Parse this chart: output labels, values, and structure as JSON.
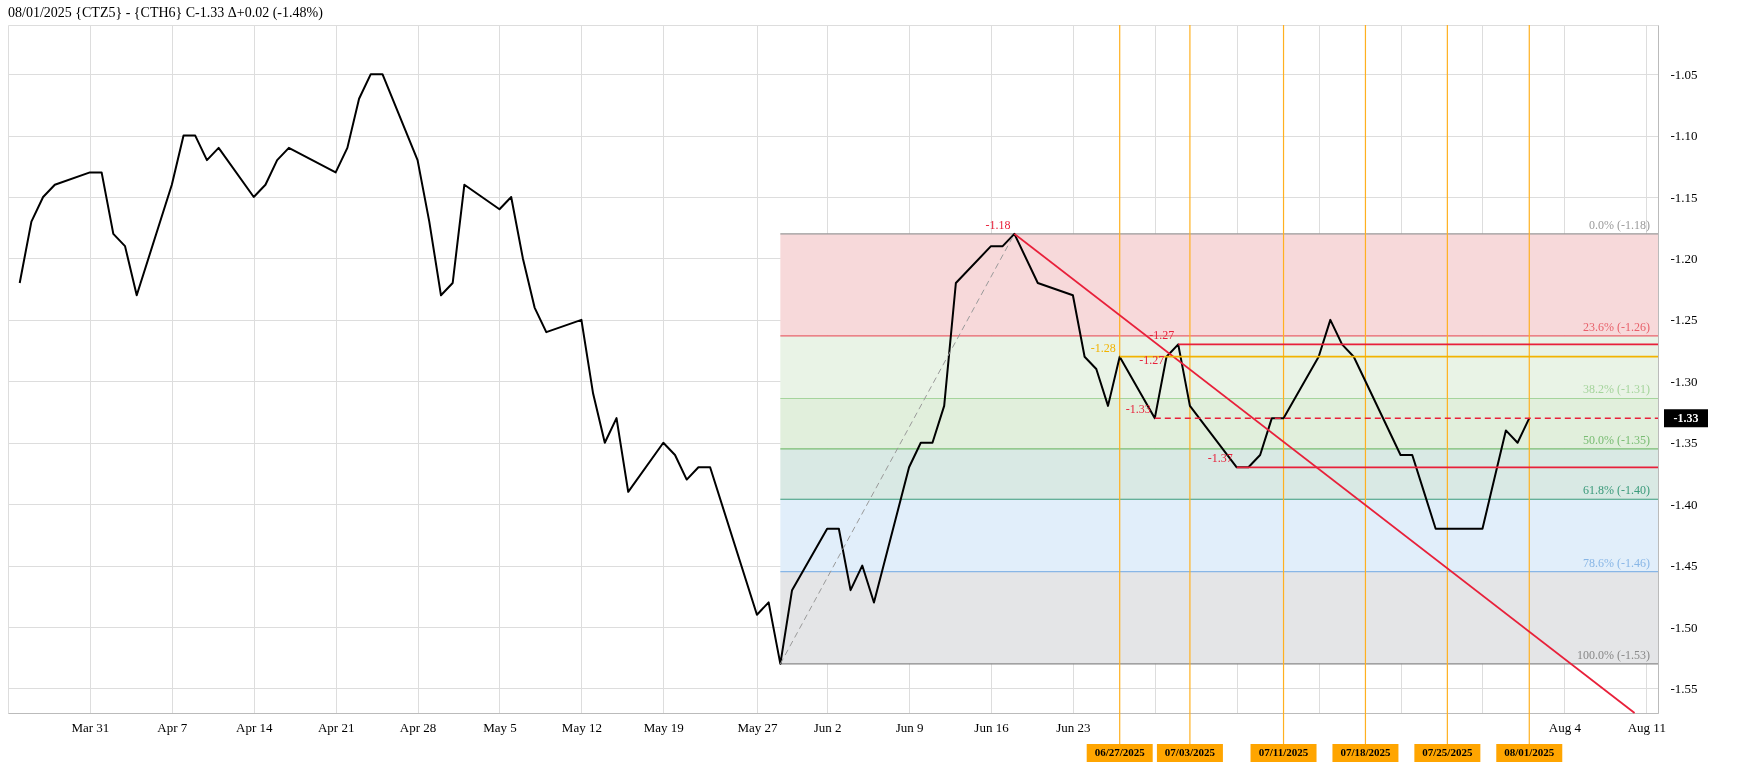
{
  "chart_data": {
    "type": "line",
    "title": "08/01/2025 {CTZ5} - {CTH6} C-1.33 Δ+0.02 (-1.48%)",
    "x": [
      "2025-03-25",
      "2025-03-26",
      "2025-03-27",
      "2025-03-28",
      "2025-03-31",
      "2025-04-01",
      "2025-04-02",
      "2025-04-03",
      "2025-04-04",
      "2025-04-07",
      "2025-04-08",
      "2025-04-09",
      "2025-04-10",
      "2025-04-11",
      "2025-04-14",
      "2025-04-15",
      "2025-04-16",
      "2025-04-17",
      "2025-04-21",
      "2025-04-22",
      "2025-04-23",
      "2025-04-24",
      "2025-04-25",
      "2025-04-28",
      "2025-04-29",
      "2025-04-30",
      "2025-05-01",
      "2025-05-02",
      "2025-05-05",
      "2025-05-06",
      "2025-05-07",
      "2025-05-08",
      "2025-05-09",
      "2025-05-12",
      "2025-05-13",
      "2025-05-14",
      "2025-05-15",
      "2025-05-16",
      "2025-05-19",
      "2025-05-20",
      "2025-05-21",
      "2025-05-22",
      "2025-05-23",
      "2025-05-27",
      "2025-05-28",
      "2025-05-29",
      "2025-05-30",
      "2025-06-02",
      "2025-06-03",
      "2025-06-04",
      "2025-06-05",
      "2025-06-06",
      "2025-06-09",
      "2025-06-10",
      "2025-06-11",
      "2025-06-12",
      "2025-06-13",
      "2025-06-16",
      "2025-06-17",
      "2025-06-18",
      "2025-06-20",
      "2025-06-23",
      "2025-06-24",
      "2025-06-25",
      "2025-06-26",
      "2025-06-27",
      "2025-06-30",
      "2025-07-01",
      "2025-07-02",
      "2025-07-03",
      "2025-07-07",
      "2025-07-08",
      "2025-07-09",
      "2025-07-10",
      "2025-07-11",
      "2025-07-14",
      "2025-07-15",
      "2025-07-16",
      "2025-07-17",
      "2025-07-18",
      "2025-07-21",
      "2025-07-22",
      "2025-07-23",
      "2025-07-24",
      "2025-07-25",
      "2025-07-28",
      "2025-07-29",
      "2025-07-30",
      "2025-07-31",
      "2025-08-01"
    ],
    "series": [
      {
        "color": "#000000",
        "values": [
          -1.22,
          -1.17,
          -1.15,
          -1.14,
          -1.13,
          -1.13,
          -1.18,
          -1.19,
          -1.23,
          -1.14,
          -1.1,
          -1.1,
          -1.12,
          -1.11,
          -1.15,
          -1.14,
          -1.12,
          -1.11,
          -1.13,
          -1.11,
          -1.07,
          -1.05,
          -1.05,
          -1.12,
          -1.17,
          -1.23,
          -1.22,
          -1.14,
          -1.16,
          -1.15,
          -1.2,
          -1.24,
          -1.26,
          -1.25,
          -1.31,
          -1.35,
          -1.33,
          -1.39,
          -1.35,
          -1.36,
          -1.38,
          -1.37,
          -1.37,
          -1.49,
          -1.48,
          -1.53,
          -1.47,
          -1.42,
          -1.42,
          -1.47,
          -1.45,
          -1.48,
          -1.37,
          -1.35,
          -1.35,
          -1.32,
          -1.22,
          -1.19,
          -1.19,
          -1.18,
          -1.22,
          -1.23,
          -1.28,
          -1.29,
          -1.32,
          -1.28,
          -1.33,
          -1.28,
          -1.27,
          -1.32,
          -1.37,
          -1.37,
          -1.36,
          -1.33,
          -1.33,
          -1.28,
          -1.25,
          -1.27,
          -1.28,
          -1.3,
          -1.36,
          -1.36,
          -1.39,
          -1.42,
          -1.42,
          -1.42,
          -1.38,
          -1.34,
          -1.35,
          -1.33
        ]
      },
      {
        "type": "line",
        "color": "#9a9a9a",
        "line_style": "dashed",
        "x": [
          "2025-05-29",
          "2025-06-18"
        ],
        "values": [
          -1.53,
          -1.18
        ]
      },
      {
        "type": "line",
        "color": "#e8203a",
        "x": [
          "2025-06-18",
          "2025-08-10"
        ],
        "values": [
          -1.18,
          -1.57
        ]
      },
      {
        "type": "line",
        "color": "#e8203a",
        "x": [
          "2025-07-02",
          "2025-08-12"
        ],
        "values": [
          -1.27,
          -1.27
        ]
      },
      {
        "type": "line",
        "color": "#f2b300",
        "x": [
          "2025-06-27",
          "2025-08-12"
        ],
        "values": [
          -1.28,
          -1.28
        ]
      },
      {
        "type": "line",
        "color": "#e8203a",
        "line_style": "dashed",
        "x": [
          "2025-06-30",
          "2025-08-12"
        ],
        "values": [
          -1.33,
          -1.33
        ]
      },
      {
        "type": "line",
        "color": "#e8203a",
        "x": [
          "2025-07-07",
          "2025-08-12"
        ],
        "values": [
          -1.37,
          -1.37
        ]
      }
    ],
    "xlim": [
      "2025-03-24",
      "2025-08-12"
    ],
    "xticks": [
      {
        "value": "2025-03-31",
        "label": "Mar 31"
      },
      {
        "value": "2025-04-07",
        "label": "Apr 7"
      },
      {
        "value": "2025-04-14",
        "label": "Apr 14"
      },
      {
        "value": "2025-04-21",
        "label": "Apr 21"
      },
      {
        "value": "2025-04-28",
        "label": "Apr 28"
      },
      {
        "value": "2025-05-05",
        "label": "May 5"
      },
      {
        "value": "2025-05-12",
        "label": "May 12"
      },
      {
        "value": "2025-05-19",
        "label": "May 19"
      },
      {
        "value": "2025-05-27",
        "label": "May 27"
      },
      {
        "value": "2025-06-02",
        "label": "Jun 2"
      },
      {
        "value": "2025-06-09",
        "label": "Jun 9"
      },
      {
        "value": "2025-06-16",
        "label": "Jun 16"
      },
      {
        "value": "2025-06-23",
        "label": "Jun 23"
      },
      {
        "value": "2025-06-30",
        "label": null
      },
      {
        "value": "2025-07-07",
        "label": null
      },
      {
        "value": "2025-07-14",
        "label": null
      },
      {
        "value": "2025-07-21",
        "label": null
      },
      {
        "value": "2025-07-28",
        "label": null
      },
      {
        "value": "2025-08-04",
        "label": "Aug 4"
      },
      {
        "value": "2025-08-11",
        "label": "Aug 11"
      }
    ],
    "ylim": [
      -1.57,
      -1.01
    ],
    "yticks": [
      -1.05,
      {
        "value": -1.1,
        "label": "-1.10"
      },
      -1.15,
      {
        "value": -1.2,
        "label": "-1.20"
      },
      -1.25,
      {
        "value": -1.3,
        "label": "-1.30"
      },
      -1.35,
      {
        "value": -1.4,
        "label": "-1.40"
      },
      -1.45,
      {
        "value": -1.5,
        "label": "-1.50"
      },
      -1.55
    ],
    "grid": true,
    "bands": [
      {
        "axis": "y",
        "from": -1.18,
        "to": -1.263,
        "color": "#f7d9da"
      },
      {
        "axis": "y",
        "from": -1.263,
        "to": -1.314,
        "color": "#e9f3e6"
      },
      {
        "axis": "y",
        "from": -1.314,
        "to": -1.355,
        "color": "#e1efdc"
      },
      {
        "axis": "y",
        "from": -1.355,
        "to": -1.396,
        "color": "#d9e9e4"
      },
      {
        "axis": "y",
        "from": -1.396,
        "to": -1.455,
        "color": "#e1eefa"
      },
      {
        "axis": "y",
        "from": -1.455,
        "to": -1.53,
        "color": "#e4e5e7"
      }
    ],
    "ref_lines": [
      {
        "axis": "y",
        "value": -1.18,
        "label": "0.0% (-1.18)",
        "color": "#9a9a9a"
      },
      {
        "axis": "y",
        "value": -1.263,
        "label": "23.6% (-1.26)",
        "color": "#e8606a"
      },
      {
        "axis": "y",
        "value": -1.314,
        "label": "38.2% (-1.31)",
        "color": "#a5d49c"
      },
      {
        "axis": "y",
        "value": -1.355,
        "label": "50.0% (-1.35)",
        "color": "#78bc72"
      },
      {
        "axis": "y",
        "value": -1.396,
        "label": "61.8% (-1.40)",
        "color": "#3a9a7a"
      },
      {
        "axis": "y",
        "value": -1.455,
        "label": "78.6% (-1.46)",
        "color": "#88b6e6"
      },
      {
        "axis": "y",
        "value": -1.53,
        "label": "100.0% (-1.53)",
        "color": "#888888"
      },
      {
        "axis": "x",
        "value": "2025-06-27",
        "label": "06/27/2025",
        "color": "#ffb020"
      },
      {
        "axis": "x",
        "value": "2025-07-03",
        "label": "07/03/2025",
        "color": "#ffb020"
      },
      {
        "axis": "x",
        "value": "2025-07-11",
        "label": "07/11/2025",
        "color": "#ffb020"
      },
      {
        "axis": "x",
        "value": "2025-07-18",
        "label": "07/18/2025",
        "color": "#ffb020"
      },
      {
        "axis": "x",
        "value": "2025-07-25",
        "label": "07/25/2025",
        "color": "#ffb020"
      },
      {
        "axis": "x",
        "value": "2025-08-01",
        "label": "08/01/2025",
        "color": "#ffb020"
      }
    ],
    "annotations": [
      {
        "text": "-1.18",
        "x": "2025-06-18",
        "y": -1.18
      },
      {
        "text": "-1.27",
        "x": "2025-07-02",
        "y": -1.27
      },
      {
        "text": "-1.27",
        "x": "2025-07-02",
        "y": -1.27
      },
      {
        "text": "-1.28",
        "x": "2025-06-27",
        "y": -1.28
      },
      {
        "text": "-1.33",
        "x": "2025-06-30",
        "y": -1.33
      },
      {
        "text": "-1.37",
        "x": "2025-07-07",
        "y": -1.37
      },
      "-1.33"
    ]
  }
}
